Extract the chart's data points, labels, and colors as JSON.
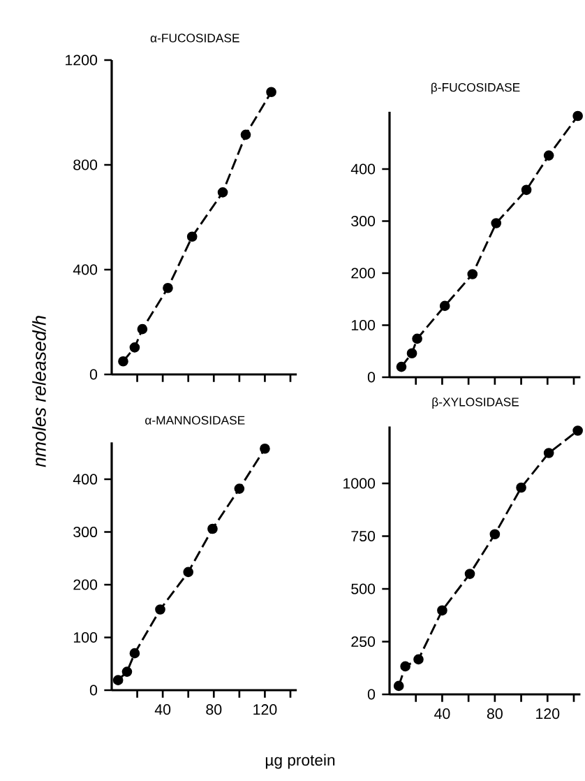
{
  "chart_data": [
    {
      "type": "line",
      "title": "α-FUCOSIDASE",
      "ylabel": "nmoles released/h",
      "marker": "circle",
      "line_style": "dashed",
      "tick_labels": "y",
      "xlim": [
        0,
        145
      ],
      "ylim": [
        0,
        1200
      ],
      "xticks": [
        {
          "value": 20,
          "label": null
        },
        {
          "value": 40,
          "label": null
        },
        {
          "value": 60,
          "label": null
        },
        {
          "value": 80,
          "label": null
        },
        {
          "value": 100,
          "label": null
        },
        {
          "value": 120,
          "label": null
        },
        {
          "value": 140,
          "label": null
        }
      ],
      "yticks": [
        0,
        400,
        800,
        1200
      ],
      "series": [
        {
          "color": "#000000",
          "x": [
            9,
            18,
            24,
            44,
            63,
            87,
            105,
            125
          ],
          "values": [
            50,
            103,
            173,
            330,
            526,
            695,
            915,
            1078
          ]
        }
      ]
    },
    {
      "type": "line",
      "title": "β-FUCOSIDASE",
      "marker": "circle",
      "line_style": "dashed",
      "tick_labels": "y",
      "xlim": [
        0,
        145
      ],
      "ylim": [
        0,
        510
      ],
      "xticks": [
        {
          "value": 20,
          "label": null
        },
        {
          "value": 40,
          "label": null
        },
        {
          "value": 60,
          "label": null
        },
        {
          "value": 80,
          "label": null
        },
        {
          "value": 100,
          "label": null
        },
        {
          "value": 120,
          "label": null
        },
        {
          "value": 140,
          "label": null
        }
      ],
      "yticks": [
        0,
        100,
        200,
        300,
        400
      ],
      "series": [
        {
          "color": "#000000",
          "x": [
            9,
            17,
            21,
            42,
            63,
            81,
            104,
            121,
            143
          ],
          "values": [
            20,
            46,
            74,
            137,
            198,
            296,
            360,
            426,
            502
          ]
        }
      ]
    },
    {
      "type": "line",
      "title": "α-MANNOSIDASE",
      "marker": "circle",
      "line_style": "dashed",
      "xlim": [
        0,
        145
      ],
      "ylim": [
        0,
        470
      ],
      "xticks": [
        {
          "value": 20,
          "label": null
        },
        40,
        {
          "value": 60,
          "label": null
        },
        80,
        {
          "value": 100,
          "label": null
        },
        120,
        {
          "value": 140,
          "label": null
        }
      ],
      "yticks": [
        0,
        100,
        200,
        300,
        400
      ],
      "series": [
        {
          "color": "#000000",
          "x": [
            5,
            12,
            18,
            38,
            60,
            79,
            100,
            120
          ],
          "values": [
            19,
            35,
            70,
            153,
            224,
            306,
            382,
            458
          ]
        }
      ]
    },
    {
      "type": "line",
      "title": "β-XYLOSIDASE",
      "xlabel": "µg protein",
      "marker": "circle",
      "line_style": "dashed",
      "xlim": [
        0,
        145
      ],
      "ylim": [
        0,
        1270
      ],
      "xticks": [
        {
          "value": 20,
          "label": null
        },
        40,
        {
          "value": 60,
          "label": null
        },
        80,
        {
          "value": 100,
          "label": null
        },
        120,
        {
          "value": 140,
          "label": null
        }
      ],
      "yticks": [
        0,
        250,
        500,
        750,
        1000
      ],
      "series": [
        {
          "color": "#000000",
          "x": [
            7,
            12,
            22,
            40,
            61,
            80,
            100,
            121,
            143
          ],
          "values": [
            40,
            133,
            166,
            398,
            571,
            759,
            980,
            1144,
            1250
          ]
        }
      ]
    }
  ]
}
